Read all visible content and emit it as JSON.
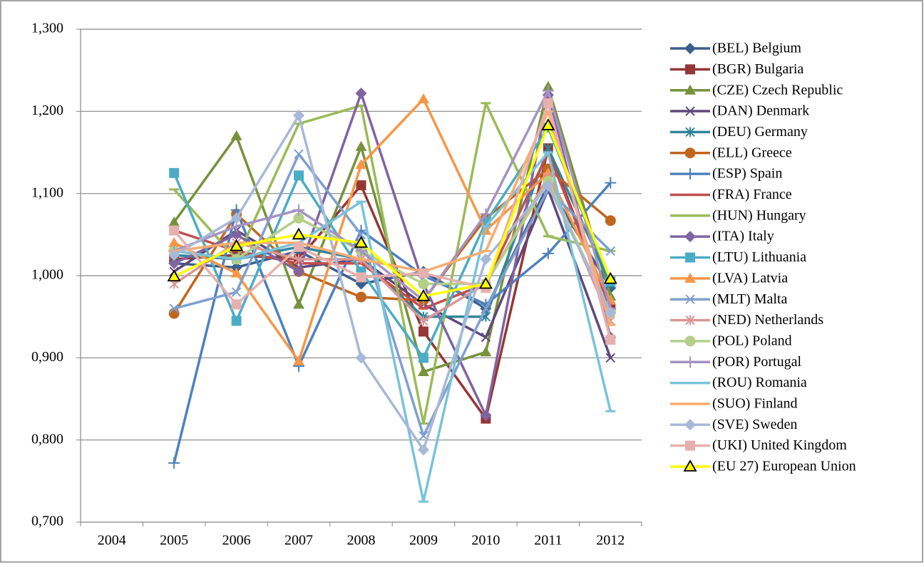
{
  "chart_data": {
    "type": "line",
    "categories": [
      "2004",
      "2005",
      "2006",
      "2007",
      "2008",
      "2009",
      "2010",
      "2011",
      "2012"
    ],
    "ylim": [
      0.7,
      1.3
    ],
    "yticks": [
      {
        "value": 0.7,
        "label": "0,700"
      },
      {
        "value": 0.8,
        "label": "0,800"
      },
      {
        "value": 0.9,
        "label": "0,900"
      },
      {
        "value": 1.0,
        "label": "1,000"
      },
      {
        "value": 1.1,
        "label": "1,100"
      },
      {
        "value": 1.2,
        "label": "1,200"
      },
      {
        "value": 1.3,
        "label": "1,300"
      }
    ],
    "grid": true,
    "legend": "right",
    "series": [
      {
        "name": "(BEL) Belgium",
        "color": "#3a5f8f",
        "marker": "diamond",
        "values": [
          null,
          1.015,
          1.01,
          1.03,
          0.99,
          1.005,
          0.96,
          1.11,
          0.985
        ]
      },
      {
        "name": "(BGR) Bulgaria",
        "color": "#953735",
        "marker": "square",
        "values": [
          null,
          1.02,
          1.025,
          1.02,
          1.11,
          0.932,
          0.826,
          1.155,
          0.96
        ]
      },
      {
        "name": "(CZE) Czech Republic",
        "color": "#76923c",
        "marker": "triangle",
        "values": [
          null,
          1.065,
          1.17,
          0.965,
          1.157,
          0.883,
          0.907,
          1.23,
          0.975
        ]
      },
      {
        "name": "(DAN) Denmark",
        "color": "#5f497a",
        "marker": "x",
        "values": [
          null,
          1.005,
          1.055,
          1.01,
          1.02,
          0.965,
          0.925,
          1.105,
          0.9
        ]
      },
      {
        "name": "(DEU) Germany",
        "color": "#31859c",
        "marker": "star",
        "values": [
          null,
          1.025,
          1.02,
          1.035,
          1.02,
          0.95,
          0.95,
          1.155,
          0.99
        ]
      },
      {
        "name": "(ELL) Greece",
        "color": "#c0661f",
        "marker": "circle",
        "values": [
          null,
          0.954,
          1.075,
          1.005,
          0.974,
          0.97,
          1.07,
          1.13,
          1.067
        ]
      },
      {
        "name": "(ESP) Spain",
        "color": "#4f81bd",
        "marker": "plus",
        "values": [
          null,
          0.772,
          1.08,
          0.89,
          1.055,
          1.0,
          0.965,
          1.027,
          1.113
        ]
      },
      {
        "name": "(FRA) France",
        "color": "#c0504d",
        "marker": "dash",
        "values": [
          null,
          1.055,
          1.03,
          1.015,
          1.015,
          0.96,
          0.99,
          1.15,
          0.96
        ]
      },
      {
        "name": "(HUN) Hungary",
        "color": "#9bbb59",
        "marker": "dash",
        "values": [
          null,
          1.105,
          1.02,
          1.185,
          1.207,
          0.82,
          1.21,
          1.048,
          1.03
        ]
      },
      {
        "name": "(ITA) Italy",
        "color": "#8064a2",
        "marker": "diamond",
        "values": [
          null,
          1.015,
          1.05,
          1.005,
          1.222,
          0.99,
          0.83,
          1.22,
          0.925
        ]
      },
      {
        "name": "(LTU) Lithuania",
        "color": "#4bacc6",
        "marker": "square",
        "values": [
          null,
          1.125,
          0.945,
          1.122,
          1.005,
          0.9,
          1.065,
          1.18,
          0.993
        ]
      },
      {
        "name": "(LVA) Latvia",
        "color": "#f79646",
        "marker": "triangle",
        "values": [
          null,
          1.04,
          1.003,
          0.896,
          1.135,
          1.215,
          1.055,
          1.125,
          0.97
        ]
      },
      {
        "name": "(MLT) Malta",
        "color": "#7f9fcf",
        "marker": "x",
        "values": [
          null,
          0.96,
          0.98,
          1.148,
          1.05,
          0.805,
          0.96,
          1.105,
          1.03
        ]
      },
      {
        "name": "(NED) Netherlands",
        "color": "#d99694",
        "marker": "star",
        "values": [
          null,
          0.99,
          1.04,
          1.02,
          1.02,
          0.945,
          0.99,
          1.12,
          0.945
        ]
      },
      {
        "name": "(POL) Poland",
        "color": "#b3cf88",
        "marker": "circle",
        "values": [
          null,
          1.03,
          1.02,
          1.07,
          1.03,
          0.99,
          0.99,
          1.115,
          0.955
        ]
      },
      {
        "name": "(POR) Portugal",
        "color": "#a593c2",
        "marker": "plus",
        "values": [
          null,
          1.03,
          1.06,
          1.08,
          1.03,
          0.97,
          1.075,
          1.225,
          0.96
        ]
      },
      {
        "name": "(ROU) Romania",
        "color": "#79c3d9",
        "marker": "dash",
        "values": [
          null,
          1.03,
          1.02,
          1.04,
          1.09,
          0.725,
          1.06,
          1.15,
          0.835
        ]
      },
      {
        "name": "(SUO) Finland",
        "color": "#f9ac6e",
        "marker": "dash",
        "values": [
          null,
          1.03,
          1.04,
          1.04,
          1.02,
          1.005,
          1.03,
          1.2,
          0.94
        ]
      },
      {
        "name": "(SVE) Sweden",
        "color": "#a8b8d8",
        "marker": "diamond",
        "values": [
          null,
          1.025,
          1.07,
          1.195,
          0.9,
          0.788,
          1.02,
          1.11,
          0.955
        ]
      },
      {
        "name": "(UKI) United Kingdom",
        "color": "#e6b0ae",
        "marker": "square",
        "values": [
          null,
          1.055,
          0.965,
          1.035,
          0.998,
          1.003,
          0.985,
          1.21,
          0.922
        ]
      },
      {
        "name": "(EU 27) European Union",
        "color": "#ffff00",
        "marker": "triangle-outlined",
        "values": [
          null,
          0.999,
          1.036,
          1.05,
          1.04,
          0.975,
          0.99,
          1.183,
          0.996
        ]
      }
    ]
  }
}
